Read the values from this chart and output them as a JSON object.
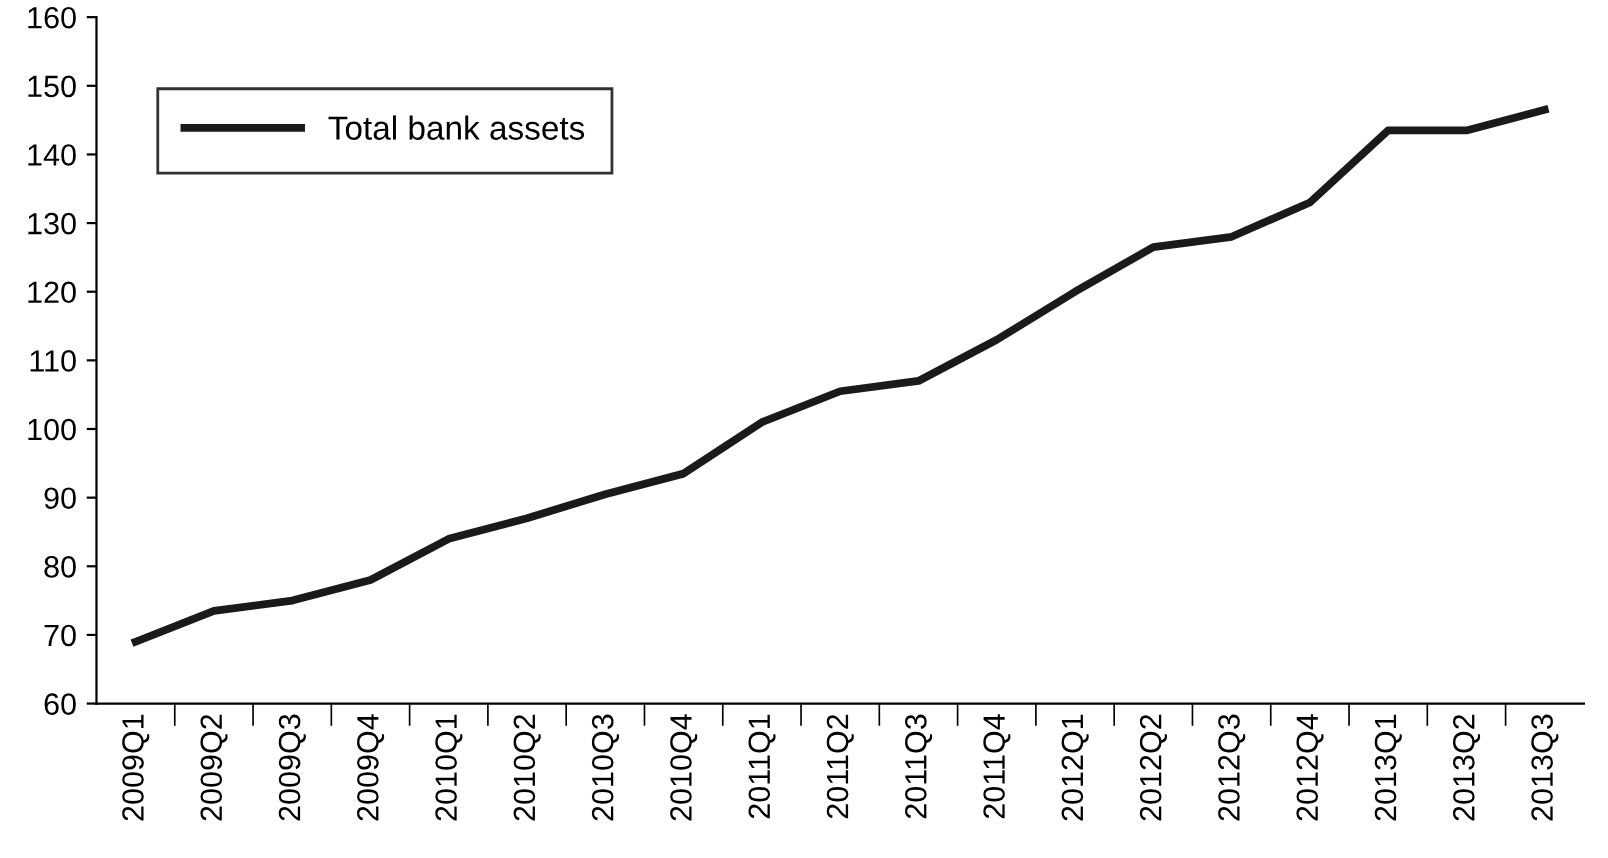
{
  "chart_data": {
    "type": "line",
    "categories": [
      "2009Q1",
      "2009Q2",
      "2009Q3",
      "2009Q4",
      "2010Q1",
      "2010Q2",
      "2010Q3",
      "2010Q4",
      "2011Q1",
      "2011Q2",
      "2011Q3",
      "2011Q4",
      "2012Q1",
      "2012Q2",
      "2012Q3",
      "2012Q4",
      "2013Q1",
      "2013Q2",
      "2013Q3"
    ],
    "series": [
      {
        "name": "Total bank assets",
        "color": "#1a1a1a",
        "values": [
          69,
          73.5,
          75,
          78,
          84,
          87,
          90.5,
          93.5,
          101,
          105.5,
          107,
          113,
          120,
          126.5,
          128,
          133,
          143.5,
          143.5,
          146.5
        ]
      }
    ],
    "ylim": [
      60,
      160
    ],
    "yticks": [
      60,
      70,
      80,
      90,
      100,
      110,
      120,
      130,
      140,
      150,
      160
    ],
    "grid": false,
    "legend": "top left",
    "marker": "none",
    "line_style": "solid"
  }
}
